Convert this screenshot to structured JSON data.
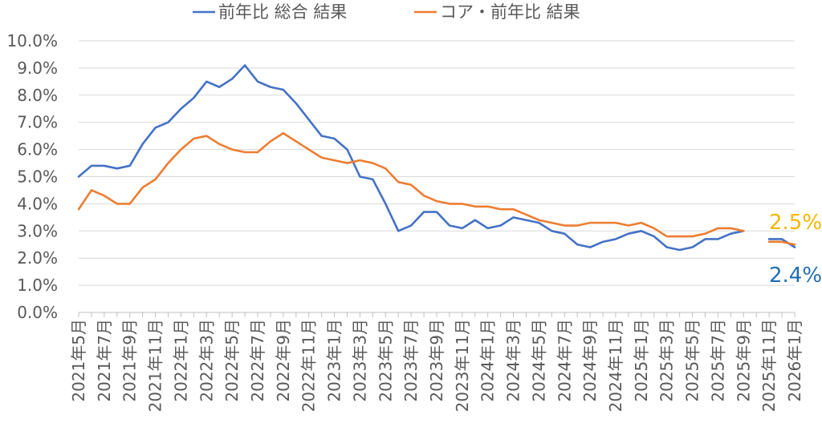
{
  "chart_data": {
    "type": "line",
    "legend_position": "top",
    "grid": true,
    "ylim": [
      0,
      10
    ],
    "y_ticks": [
      "0.0%",
      "1.0%",
      "2.0%",
      "3.0%",
      "4.0%",
      "5.0%",
      "6.0%",
      "7.0%",
      "8.0%",
      "9.0%",
      "10.0%"
    ],
    "categories": [
      "2021年5月",
      "",
      "2021年7月",
      "",
      "2021年9月",
      "",
      "2021年11月",
      "",
      "2022年1月",
      "",
      "2022年3月",
      "",
      "2022年5月",
      "",
      "2022年7月",
      "",
      "2022年9月",
      "",
      "2022年11月",
      "",
      "2023年1月",
      "",
      "2023年3月",
      "",
      "2023年5月",
      "",
      "2023年7月",
      "",
      "2023年9月",
      "",
      "2023年11月",
      "",
      "2024年1月",
      "",
      "2024年3月",
      "",
      "2024年5月",
      "",
      "2024年7月",
      "",
      "2024年9月",
      "",
      "2024年11月",
      "",
      "2025年1月",
      "",
      "2025年3月",
      "",
      "2025年5月",
      "",
      "2025年7月",
      "",
      "2025年9月",
      "",
      "2025年11月",
      "",
      "2026年1月"
    ],
    "series": [
      {
        "name": "前年比 総合 結果",
        "color": "#4472C4",
        "values": [
          5.0,
          5.4,
          5.4,
          5.3,
          5.4,
          6.2,
          6.8,
          7.0,
          7.5,
          7.9,
          8.5,
          8.3,
          8.6,
          9.1,
          8.5,
          8.3,
          8.2,
          7.7,
          7.1,
          6.5,
          6.4,
          6.0,
          5.0,
          4.9,
          4.0,
          3.0,
          3.2,
          3.7,
          3.7,
          3.2,
          3.1,
          3.4,
          3.1,
          3.2,
          3.5,
          3.4,
          3.3,
          3.0,
          2.9,
          2.5,
          2.4,
          2.6,
          2.7,
          2.9,
          3.0,
          2.8,
          2.4,
          2.3,
          2.4,
          2.7,
          2.7,
          2.9,
          3.0,
          null,
          2.7,
          2.7,
          2.4
        ]
      },
      {
        "name": "コア・前年比 結果",
        "color": "#ED7D31",
        "values": [
          3.8,
          4.5,
          4.3,
          4.0,
          4.0,
          4.6,
          4.9,
          5.5,
          6.0,
          6.4,
          6.5,
          6.2,
          6.0,
          5.9,
          5.9,
          6.3,
          6.6,
          6.3,
          6.0,
          5.7,
          5.6,
          5.5,
          5.6,
          5.5,
          5.3,
          4.8,
          4.7,
          4.3,
          4.1,
          4.0,
          4.0,
          3.9,
          3.9,
          3.8,
          3.8,
          3.6,
          3.4,
          3.3,
          3.2,
          3.2,
          3.3,
          3.3,
          3.3,
          3.2,
          3.3,
          3.1,
          2.8,
          2.8,
          2.8,
          2.9,
          3.1,
          3.1,
          3.0,
          null,
          2.6,
          2.6,
          2.5
        ]
      }
    ],
    "end_labels": [
      {
        "text": "2.5%",
        "color": "#F5B800"
      },
      {
        "text": "2.4%",
        "color": "#1F6FB4"
      }
    ]
  }
}
